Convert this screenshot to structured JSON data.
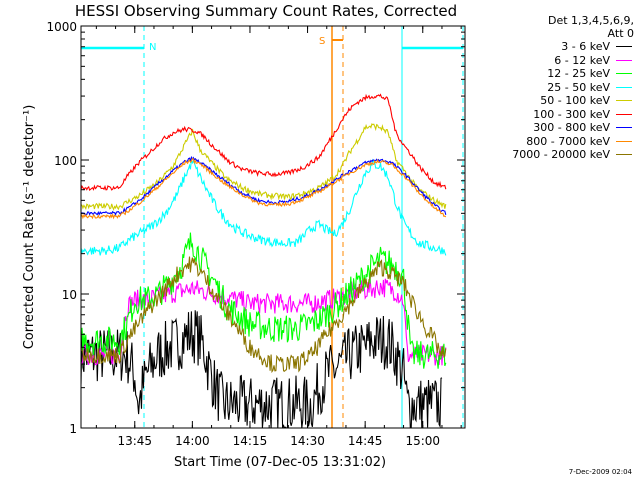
{
  "chart_data": {
    "type": "line",
    "title": "HESSI Observing Summary Count Rates, Corrected",
    "xlabel": "Start Time (07-Dec-05 13:31:02)",
    "ylabel": "Corrected Count Rate (s⁻¹ detector⁻¹)",
    "yscale": "log",
    "ylim": [
      1,
      1000
    ],
    "xlim_minutes": [
      0,
      100
    ],
    "x_ticks": [
      {
        "m": 14,
        "label": "13:45"
      },
      {
        "m": 29,
        "label": "14:00"
      },
      {
        "m": 44,
        "label": "14:15"
      },
      {
        "m": 59,
        "label": "14:30"
      },
      {
        "m": 74,
        "label": "14:45"
      },
      {
        "m": 89,
        "label": "15:00"
      }
    ],
    "y_ticks": [
      {
        "v": 1,
        "label": "1"
      },
      {
        "v": 10,
        "label": "10"
      },
      {
        "v": 100,
        "label": "100"
      },
      {
        "v": 1000,
        "label": "1000"
      }
    ],
    "legend_title": [
      "Det 1,3,4,5,6,9,",
      "Att 0"
    ],
    "legend_position": "right",
    "series": [
      {
        "name": "3 - 6 keV",
        "color": "#000000",
        "x": [
          0,
          12,
          14,
          15,
          17,
          20,
          23,
          26,
          28,
          30,
          32,
          33,
          35,
          37,
          40,
          44,
          50,
          56,
          60,
          62,
          64,
          68,
          70,
          74,
          76,
          78,
          80,
          82,
          84,
          85,
          86,
          88,
          90,
          94
        ],
        "y": [
          3.5,
          3.5,
          2.5,
          1.5,
          2.5,
          3.5,
          4,
          4.5,
          5,
          5,
          4,
          3,
          2,
          1.5,
          1.5,
          1.5,
          1.5,
          1.5,
          1.5,
          2,
          2.5,
          3,
          3.5,
          4,
          4.5,
          4.5,
          4.5,
          3.5,
          2.5,
          1.5,
          1.5,
          1.5,
          1.5,
          1.5
        ]
      },
      {
        "name": "6 - 12 keV",
        "color": "#ff00ff",
        "x": [
          0,
          10,
          12,
          14,
          17,
          20,
          23,
          26,
          29,
          32,
          35,
          38,
          44,
          50,
          56,
          60,
          64,
          68,
          72,
          76,
          78,
          80,
          82,
          84,
          85,
          88,
          92,
          95
        ],
        "y": [
          3.5,
          3.5,
          8,
          9,
          9,
          9.5,
          10,
          10.5,
          11,
          10.5,
          10,
          9.5,
          8.5,
          8.5,
          8.5,
          8.5,
          9,
          9.5,
          10.5,
          11,
          11.5,
          11,
          10.5,
          9,
          3.5,
          3.5,
          3.5,
          3.5
        ]
      },
      {
        "name": "12 - 25 keV",
        "color": "#00ff00",
        "x": [
          0,
          10,
          12,
          14,
          17,
          20,
          23,
          26,
          28,
          29,
          30,
          32,
          35,
          38,
          44,
          50,
          56,
          60,
          64,
          68,
          72,
          74,
          76,
          78,
          80,
          82,
          84,
          86,
          88,
          92,
          95
        ],
        "y": [
          4.5,
          4.5,
          6,
          9,
          9,
          10,
          12,
          16,
          22,
          25,
          22,
          17,
          12,
          8,
          6,
          5.5,
          5.5,
          6,
          7,
          9,
          12,
          14,
          16,
          18,
          17,
          16,
          13,
          3.5,
          3.5,
          3.5,
          3.5
        ]
      },
      {
        "name": "25 - 50 keV",
        "color": "#00ffff",
        "x": [
          0,
          6,
          10,
          13,
          16,
          19,
          22,
          25,
          27,
          29,
          31,
          33,
          35,
          37,
          40,
          44,
          48,
          52,
          56,
          58,
          60,
          62,
          64,
          66,
          68,
          70,
          72,
          74,
          76,
          78,
          80,
          82,
          84,
          86,
          88,
          92,
          95
        ],
        "y": [
          21,
          21,
          22,
          26,
          29,
          33,
          40,
          55,
          75,
          97,
          75,
          58,
          46,
          38,
          31,
          27,
          25,
          24,
          24,
          27,
          31,
          33,
          30,
          28,
          33,
          43,
          60,
          80,
          93,
          90,
          75,
          48,
          34,
          28,
          24,
          22,
          21
        ]
      },
      {
        "name": "50 - 100 keV",
        "color": "#cccc00",
        "x": [
          0,
          10,
          13,
          16,
          20,
          24,
          27,
          29,
          31,
          34,
          38,
          42,
          46,
          50,
          54,
          58,
          62,
          64,
          66,
          68,
          70,
          72,
          74,
          76,
          78,
          80,
          82,
          84,
          86,
          88,
          92,
          95
        ],
        "y": [
          45,
          45,
          50,
          56,
          68,
          90,
          130,
          165,
          120,
          95,
          72,
          62,
          56,
          54,
          53,
          56,
          62,
          68,
          75,
          90,
          115,
          140,
          175,
          180,
          175,
          160,
          100,
          85,
          70,
          60,
          50,
          45
        ]
      },
      {
        "name": "100 - 300 keV",
        "color": "#ff0000",
        "x": [
          0,
          10,
          12,
          15,
          18,
          21,
          24,
          27,
          30,
          32,
          34,
          36,
          38,
          40,
          42,
          46,
          50,
          54,
          58,
          62,
          64,
          66,
          68,
          70,
          72,
          74,
          76,
          78,
          80,
          82,
          84,
          86,
          88,
          90,
          92,
          95
        ],
        "y": [
          62,
          62,
          75,
          95,
          115,
          140,
          160,
          170,
          165,
          150,
          130,
          115,
          100,
          92,
          85,
          80,
          78,
          80,
          88,
          105,
          130,
          160,
          200,
          240,
          270,
          290,
          300,
          300,
          280,
          160,
          130,
          110,
          90,
          78,
          68,
          62
        ]
      },
      {
        "name": "300 - 800 keV",
        "color": "#0000ff",
        "x": [
          0,
          10,
          13,
          16,
          20,
          24,
          27,
          29,
          31,
          34,
          38,
          42,
          46,
          50,
          54,
          58,
          62,
          66,
          70,
          74,
          77,
          79,
          81,
          84,
          88,
          92,
          95
        ],
        "y": [
          40,
          40,
          45,
          52,
          66,
          83,
          97,
          103,
          96,
          83,
          68,
          57,
          50,
          48,
          49,
          53,
          60,
          70,
          83,
          95,
          100,
          99,
          95,
          80,
          60,
          46,
          40
        ]
      },
      {
        "name": "800 - 7000 keV",
        "color": "#ff8800",
        "x": [
          0,
          10,
          13,
          16,
          20,
          24,
          27,
          29,
          31,
          34,
          38,
          42,
          46,
          50,
          54,
          58,
          62,
          66,
          70,
          74,
          77,
          79,
          81,
          84,
          88,
          92,
          95
        ],
        "y": [
          38,
          38,
          43,
          50,
          63,
          80,
          95,
          100,
          94,
          80,
          65,
          55,
          48,
          46,
          47,
          51,
          58,
          68,
          80,
          92,
          97,
          96,
          92,
          77,
          57,
          44,
          38
        ]
      },
      {
        "name": "7000 - 20000 keV",
        "color": "#8b7500",
        "x": [
          0,
          10,
          12,
          15,
          18,
          21,
          24,
          27,
          29,
          31,
          34,
          37,
          40,
          44,
          50,
          56,
          60,
          64,
          68,
          72,
          76,
          78,
          80,
          84,
          86,
          88,
          90,
          92,
          94,
          95
        ],
        "y": [
          3.5,
          3.5,
          4.5,
          6,
          8,
          10,
          13,
          16,
          17,
          15,
          11,
          8,
          6,
          4,
          3,
          3,
          3.5,
          5,
          7,
          10,
          14,
          16,
          15,
          12,
          9,
          7,
          5.5,
          4.5,
          3.5,
          3.5
        ]
      }
    ],
    "annotations": [
      {
        "label": "N",
        "color": "#00ffff"
      },
      {
        "label": "S",
        "color": "#ff8800"
      }
    ],
    "timestamp": "7-Dec-2009 02:04"
  }
}
